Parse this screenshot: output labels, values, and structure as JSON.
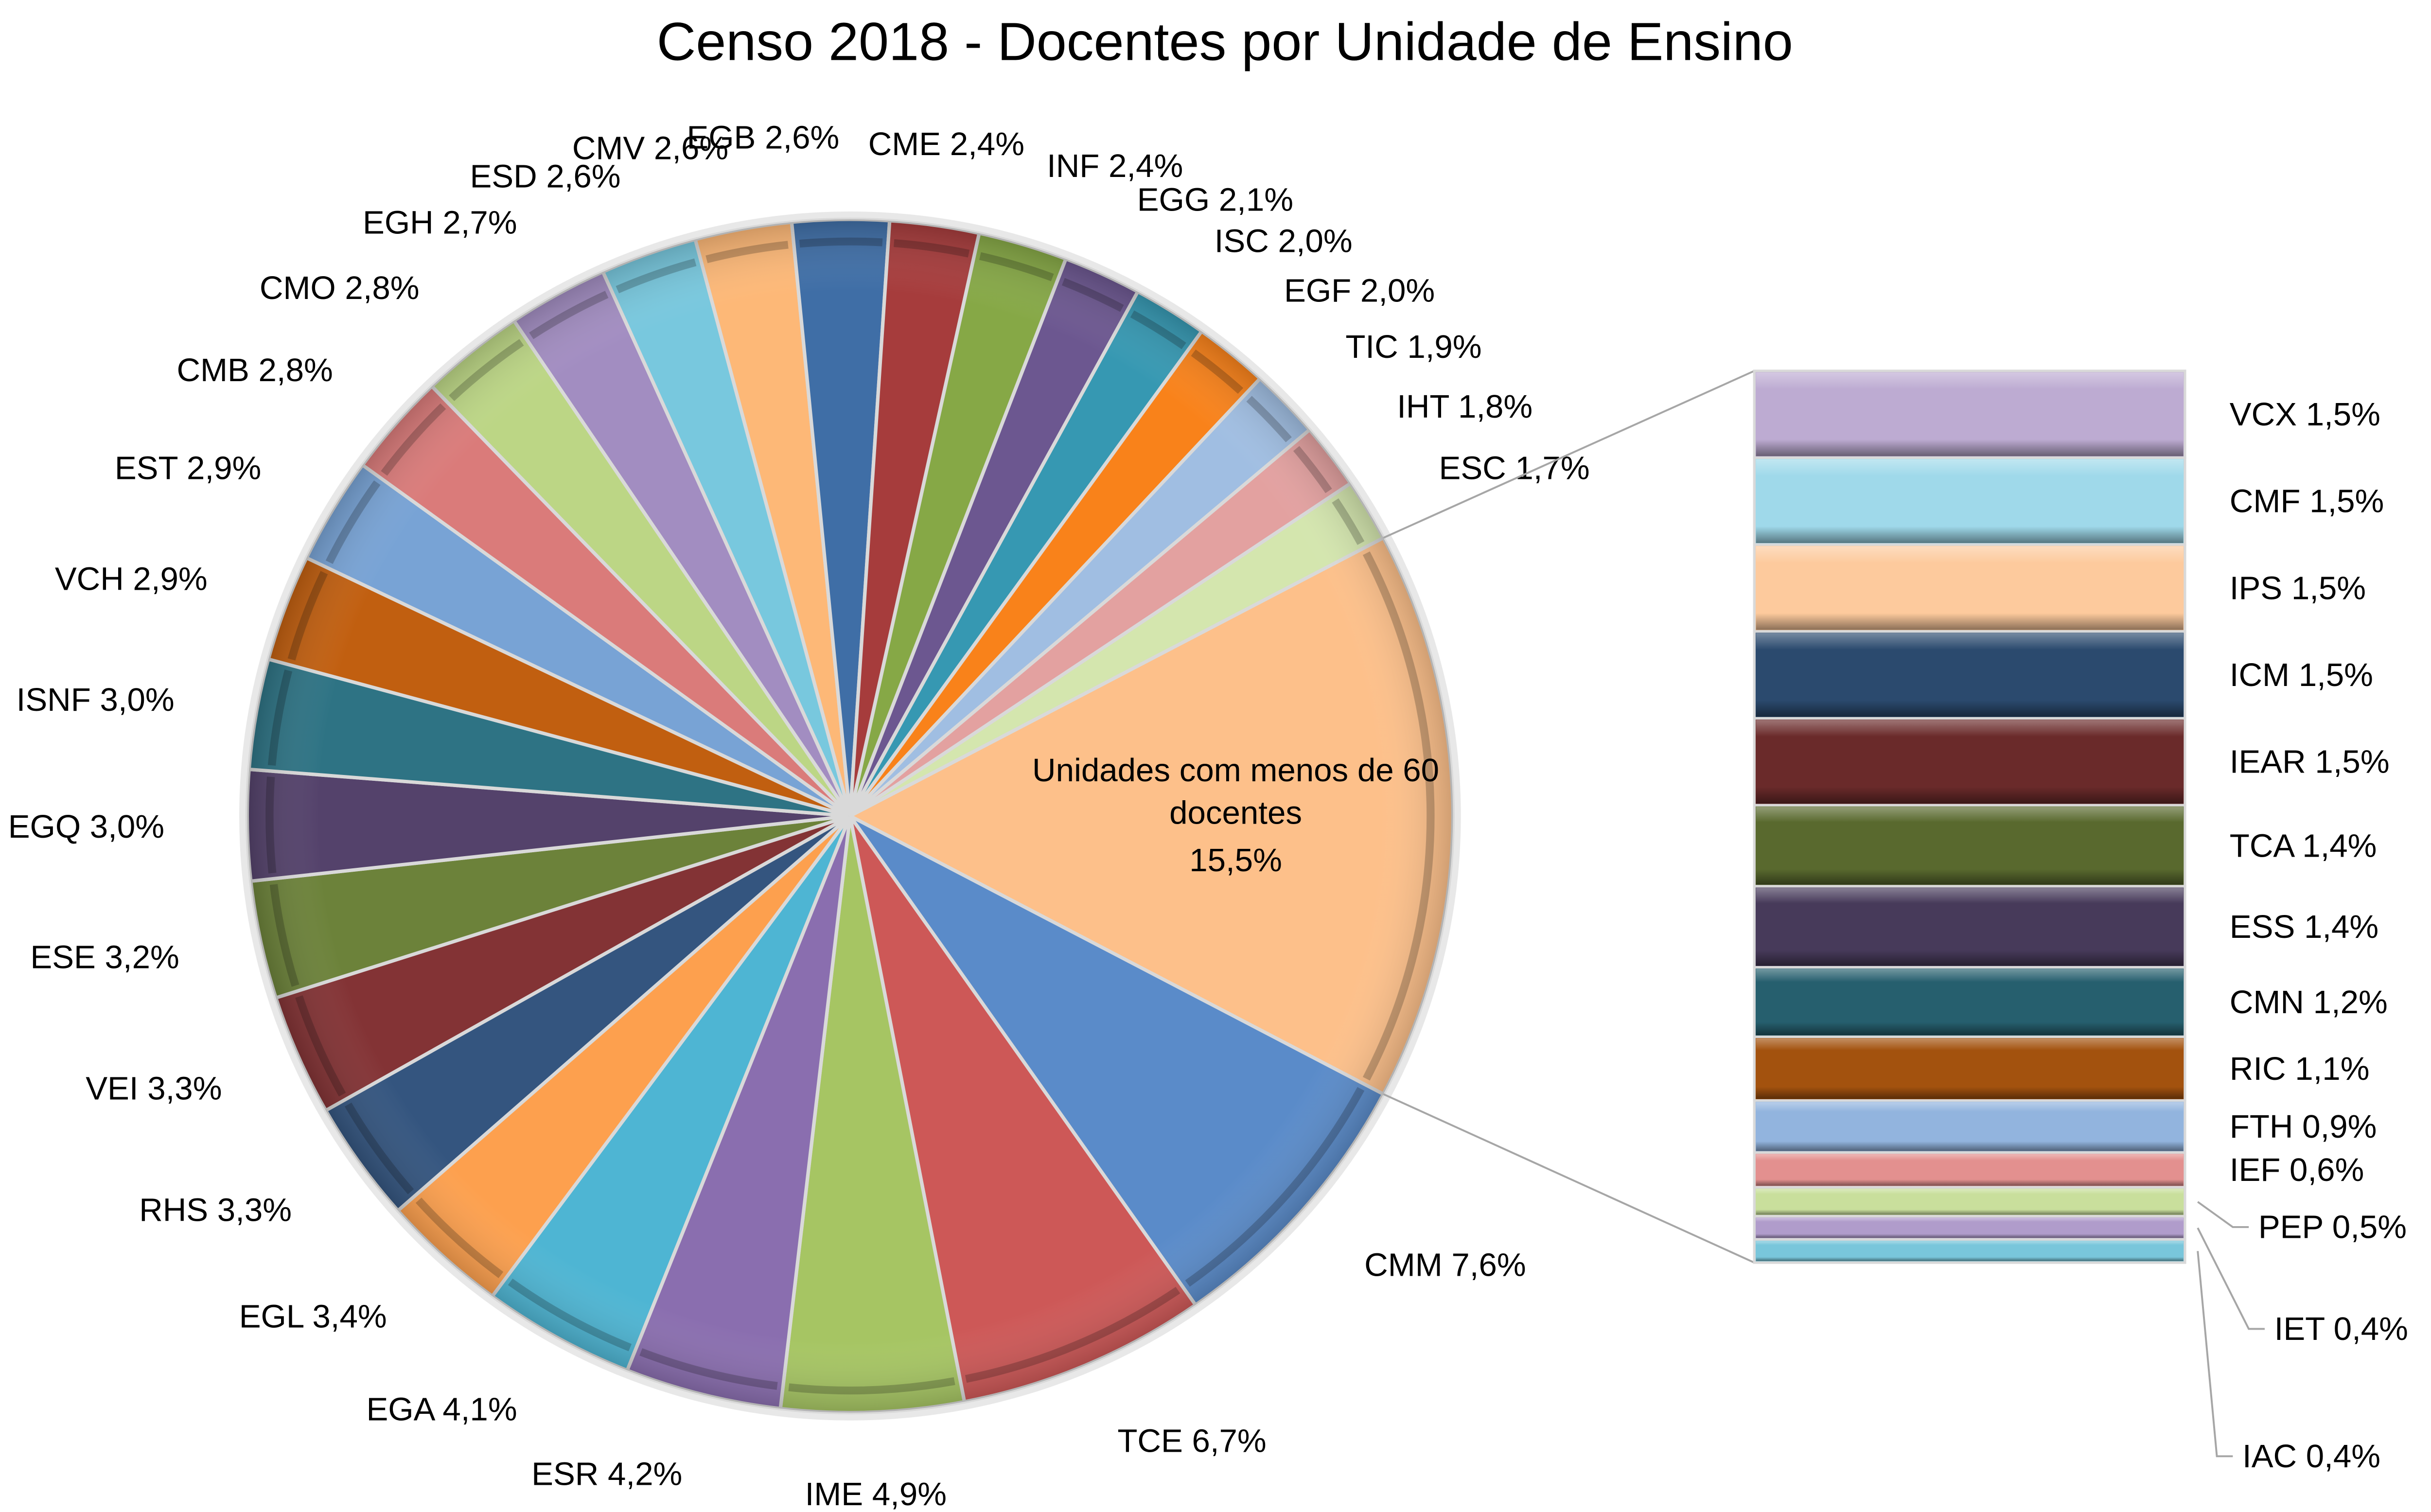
{
  "chart_data": {
    "type": "pie",
    "subtype": "bar-of-pie",
    "title": "Censo 2018 - Docentes por Unidade de Ensino",
    "unit": "%",
    "decimal_separator": ",",
    "pie": {
      "start_label_note": "slices listed clockwise starting with the aggregated slice",
      "slices": [
        {
          "label": "Unidades com menos de 60 docentes",
          "value": 15.5,
          "color": "#FDC08A",
          "aggregate": true
        },
        {
          "label": "CMM",
          "value": 7.6,
          "color": "#5A8BC9"
        },
        {
          "label": "TCE",
          "value": 6.7,
          "color": "#CD5857"
        },
        {
          "label": "IME",
          "value": 4.9,
          "color": "#A6C563"
        },
        {
          "label": "ESR",
          "value": 4.2,
          "color": "#8A6EAF"
        },
        {
          "label": "EGA",
          "value": 4.1,
          "color": "#4EB5D3"
        },
        {
          "label": "EGL",
          "value": 3.4,
          "color": "#FDA04E"
        },
        {
          "label": "RHS",
          "value": 3.3,
          "color": "#34557F"
        },
        {
          "label": "VEI",
          "value": 3.3,
          "color": "#833335"
        },
        {
          "label": "ESE",
          "value": 3.2,
          "color": "#6C823A"
        },
        {
          "label": "EGQ",
          "value": 3.0,
          "color": "#54426B"
        },
        {
          "label": "ISNF",
          "value": 3.0,
          "color": "#2E7384"
        },
        {
          "label": "VCH",
          "value": 2.9,
          "color": "#C15F10"
        },
        {
          "label": "EST",
          "value": 2.9,
          "color": "#78A3D5"
        },
        {
          "label": "CMB",
          "value": 2.8,
          "color": "#DA7B7A"
        },
        {
          "label": "CMO",
          "value": 2.8,
          "color": "#BCD685"
        },
        {
          "label": "EGH",
          "value": 2.7,
          "color": "#A28DC1"
        },
        {
          "label": "ESD",
          "value": 2.6,
          "color": "#78C8DE"
        },
        {
          "label": "CMV",
          "value": 2.6,
          "color": "#FDB877"
        },
        {
          "label": "EGB",
          "value": 2.6,
          "color": "#3F6EA6"
        },
        {
          "label": "CME",
          "value": 2.4,
          "color": "#A63C3C"
        },
        {
          "label": "INF",
          "value": 2.4,
          "color": "#86A846"
        },
        {
          "label": "EGG",
          "value": 2.1,
          "color": "#6C5790"
        },
        {
          "label": "ISC",
          "value": 2.0,
          "color": "#3698B2"
        },
        {
          "label": "EGF",
          "value": 2.0,
          "color": "#F9821A"
        },
        {
          "label": "TIC",
          "value": 1.9,
          "color": "#A0BEE2"
        },
        {
          "label": "IHT",
          "value": 1.8,
          "color": "#E3A1A0"
        },
        {
          "label": "ESC",
          "value": 1.7,
          "color": "#D4E6AE"
        }
      ]
    },
    "bar": {
      "description": "breakdown of 'Unidades com menos de 60 docentes'",
      "segments": [
        {
          "label": "VCX",
          "value": 1.5,
          "color": "#BDABD2"
        },
        {
          "label": "CMF",
          "value": 1.5,
          "color": "#9FD9EA"
        },
        {
          "label": "IPS",
          "value": 1.5,
          "color": "#FDCA9D"
        },
        {
          "label": "ICM",
          "value": 1.5,
          "color": "#2B4A6E"
        },
        {
          "label": "IEAR",
          "value": 1.5,
          "color": "#6A2A2A"
        },
        {
          "label": "TCA",
          "value": 1.4,
          "color": "#59692E"
        },
        {
          "label": "ESS",
          "value": 1.4,
          "color": "#473A5A"
        },
        {
          "label": "CMN",
          "value": 1.2,
          "color": "#265F6E"
        },
        {
          "label": "RIC",
          "value": 1.1,
          "color": "#A3520E"
        },
        {
          "label": "FTH",
          "value": 0.9,
          "color": "#92B4DE"
        },
        {
          "label": "IEF",
          "value": 0.6,
          "color": "#E3908F"
        },
        {
          "label": "PEP",
          "value": 0.5,
          "color": "#C9DF9C"
        },
        {
          "label": "IET",
          "value": 0.4,
          "color": "#B09CCB"
        },
        {
          "label": "IAC",
          "value": 0.4,
          "color": "#79C6DB"
        }
      ]
    },
    "legend": "none",
    "data_labels": "category and percentage"
  }
}
